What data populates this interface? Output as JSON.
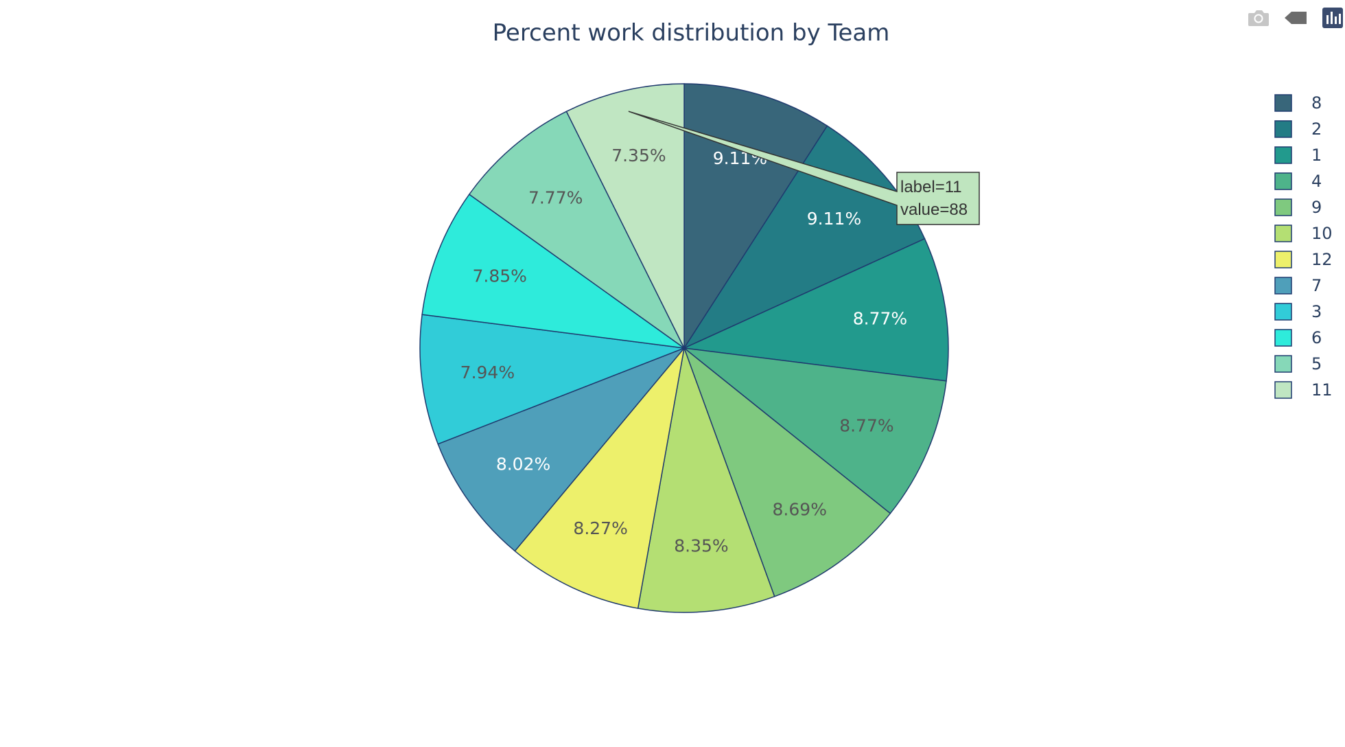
{
  "chart_data": {
    "type": "pie",
    "title": "Percent work distribution by Team",
    "labels": [
      "8",
      "2",
      "1",
      "4",
      "9",
      "10",
      "12",
      "7",
      "3",
      "6",
      "5",
      "11"
    ],
    "values": [
      109,
      109,
      105,
      105,
      104,
      100,
      99,
      96,
      95,
      94,
      93,
      88
    ],
    "percent_labels": [
      "9.11%",
      "9.11%",
      "8.77%",
      "8.77%",
      "8.69%",
      "8.35%",
      "8.27%",
      "8.02%",
      "7.94%",
      "7.85%",
      "7.77%",
      "7.35%"
    ],
    "colors": [
      "#38667a",
      "#237c85",
      "#229a8d",
      "#4eb38a",
      "#7fc97f",
      "#b4df73",
      "#edf06b",
      "#4f9fba",
      "#31ccd8",
      "#2eebdb",
      "#86d8b8",
      "#c0e6c2"
    ],
    "text_colors": [
      "#ffffff",
      "#ffffff",
      "#ffffff",
      "#555555",
      "#555555",
      "#555555",
      "#555555",
      "#ffffff",
      "#555555",
      "#555555",
      "#555555",
      "#555555"
    ],
    "legend_position": "top-right",
    "direction": "clockwise",
    "start": "12 o'clock",
    "slice_border_color": "#1f3a6e",
    "hover": {
      "label_line": "label=11",
      "value_line": "value=88",
      "slice_index": 11
    }
  },
  "modebar": {
    "icons": [
      "camera-icon",
      "tag-icon",
      "chart-icon"
    ]
  }
}
